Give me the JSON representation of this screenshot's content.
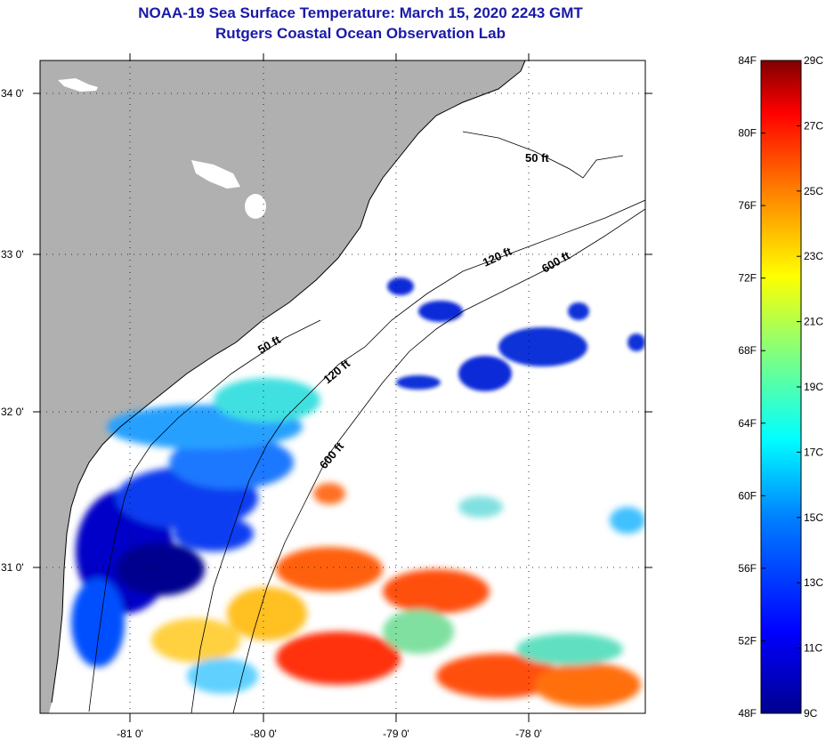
{
  "header": {
    "title": "NOAA-19 Sea Surface Temperature:  March 15, 2020 2243 GMT",
    "subtitle": "Rutgers Coastal Ocean Observation Lab"
  },
  "map": {
    "longitude_ticks": [
      "-81 0'",
      "-80 0'",
      "-79 0'",
      "-78 0'"
    ],
    "latitude_ticks": [
      "34 0'",
      "33 0'",
      "32 0'",
      "31 0'"
    ],
    "contour_labels": [
      "50 ft",
      "120 ft",
      "600 ft",
      "50 ft",
      "120 ft",
      "600 ft"
    ],
    "colors": {
      "land": "#b0b0b0",
      "water_no_data": "#ffffff"
    }
  },
  "colorbar": {
    "fahrenheit_labels": [
      "84F",
      "80F",
      "76F",
      "72F",
      "68F",
      "64F",
      "60F",
      "56F",
      "52F",
      "48F"
    ],
    "celsius_labels": [
      "29C",
      "27C",
      "25C",
      "23C",
      "21C",
      "19C",
      "17C",
      "15C",
      "13C",
      "11C",
      "9C"
    ],
    "stops": [
      "#00008f",
      "#0000ff",
      "#0080ff",
      "#00ffff",
      "#80ff80",
      "#ffff00",
      "#ff8000",
      "#ff0000",
      "#800000"
    ]
  }
}
